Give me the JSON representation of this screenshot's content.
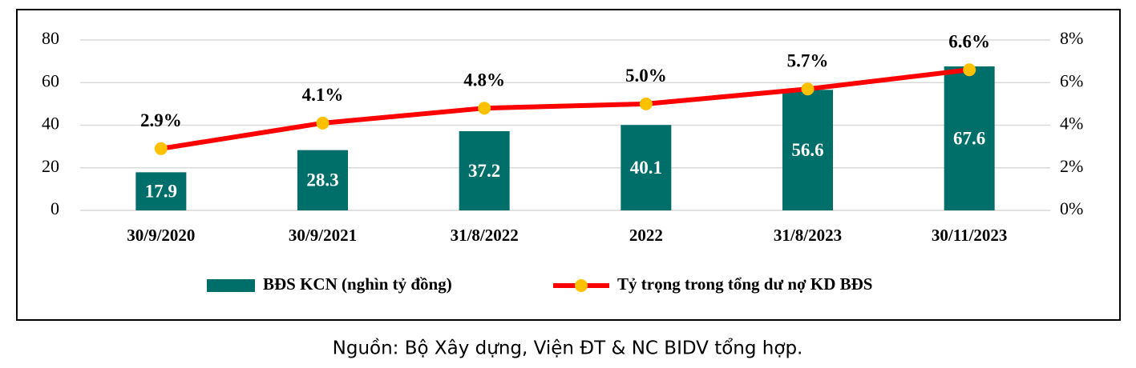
{
  "chart_data": {
    "type": "bar",
    "categories": [
      "30/9/2020",
      "30/9/2021",
      "31/8/2022",
      "2022",
      "31/8/2023",
      "30/11/2023"
    ],
    "series": [
      {
        "name": "BĐS KCN (nghìn tỷ đồng)",
        "type": "bar",
        "color": "#006f6a",
        "values": [
          17.9,
          28.3,
          37.2,
          40.1,
          56.6,
          67.6
        ]
      },
      {
        "name": "Tỷ trọng trong tổng dư nợ KD BĐS",
        "type": "line",
        "axis": "y2",
        "color": "#ff0000",
        "marker_color": "#ffc000",
        "values": [
          2.9,
          4.1,
          4.8,
          5.0,
          5.7,
          6.6
        ],
        "value_labels": [
          "2.9%",
          "4.1%",
          "4.8%",
          "5.0%",
          "5.7%",
          "6.6%"
        ]
      }
    ],
    "ylim": [
      0,
      80
    ],
    "yticks": [
      0,
      20,
      40,
      60,
      80
    ],
    "y2lim": [
      0,
      8
    ],
    "y2ticks": [
      {
        "value": 0,
        "label": "0%"
      },
      {
        "value": 2,
        "label": "2%"
      },
      {
        "value": 4,
        "label": "4%"
      },
      {
        "value": 6,
        "label": "6%"
      },
      {
        "value": 8,
        "label": "8%"
      }
    ],
    "grid": true,
    "legend": "bottom",
    "source": "Nguồn: Bộ Xây dựng, Viện ĐT & NC BIDV tổng hợp."
  }
}
